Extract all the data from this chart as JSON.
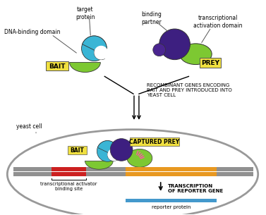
{
  "bg_color": "#ffffff",
  "green_color": "#7dc832",
  "cyan_color": "#3ab5d5",
  "purple_color": "#3d1f80",
  "dark_purple_color": "#4a2590",
  "gray_color": "#909090",
  "red_color": "#cc2020",
  "orange_color": "#e89820",
  "blue_color": "#4499cc",
  "yellow_color": "#f0e040",
  "pink_color": "#ff55aa",
  "label_bait": "BAIT",
  "label_prey": "PREY",
  "label_captured": "CAPTURED PREY",
  "label_dna_binding": "DNA-binding domain",
  "label_target": "target\nprotein",
  "label_binding_partner": "binding\npartner",
  "label_transcriptional": "transcriptional\nactivation domain",
  "label_yeast_cell": "yeast cell",
  "label_recombinant": "RECOMBINANT GENES ENCODING\nBAIT AND PREY INTRODUCED INTO\nYEAST CELL",
  "label_transcription": "TRANSCRIPTION\nOF REPORTER GENE",
  "label_binding_site": "transcriptional activator\nbinding site",
  "label_reporter": "reporter protein"
}
